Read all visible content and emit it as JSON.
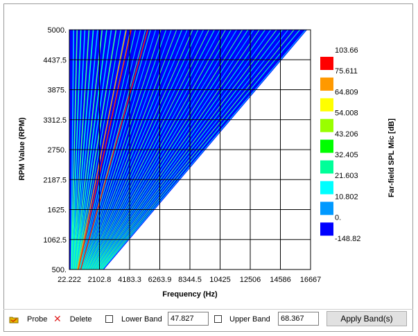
{
  "colors": {
    "legend": [
      "#ff0000",
      "#ff9900",
      "#ffff00",
      "#99ff00",
      "#00ff00",
      "#00ff99",
      "#00ffff",
      "#0099ff",
      "#0000ff"
    ],
    "fill_base": "#0000ff",
    "band_teal": "#00ffcc",
    "band_orange": "#ff9900",
    "band_red": "#ff2000"
  },
  "chart_data": {
    "type": "heatmap",
    "xlabel": "Frequency (Hz)",
    "ylabel": "RPM Value (RPM)",
    "xlim": [
      22.222,
      16667
    ],
    "ylim": [
      500,
      5000
    ],
    "x_ticks": [
      "22.222",
      "2102.8",
      "4183.3",
      "6263.9",
      "8344.5",
      "10425",
      "12506",
      "14586",
      "16667"
    ],
    "y_ticks": [
      "500.",
      "1062.5",
      "1625.",
      "2187.5",
      "2750.",
      "3312.5",
      "3875.",
      "4437.5",
      "5000."
    ],
    "grid": true,
    "colorbar": {
      "title": "Far-field SPL Mic [dB]",
      "labels": [
        "103.66",
        "75.611",
        "64.809",
        "54.008",
        "43.206",
        "32.405",
        "21.603",
        "10.802",
        "0.",
        "-148.82"
      ]
    }
  },
  "toolbar": {
    "probe_label": "Probe",
    "delete_label": "Delete",
    "lower_band_label": "Lower Band",
    "lower_band_value": "47.827",
    "upper_band_label": "Upper Band",
    "upper_band_value": "68.367",
    "apply_label": "Apply Band(s)",
    "probe_icon": "probe-icon",
    "delete_icon": "close-icon"
  }
}
